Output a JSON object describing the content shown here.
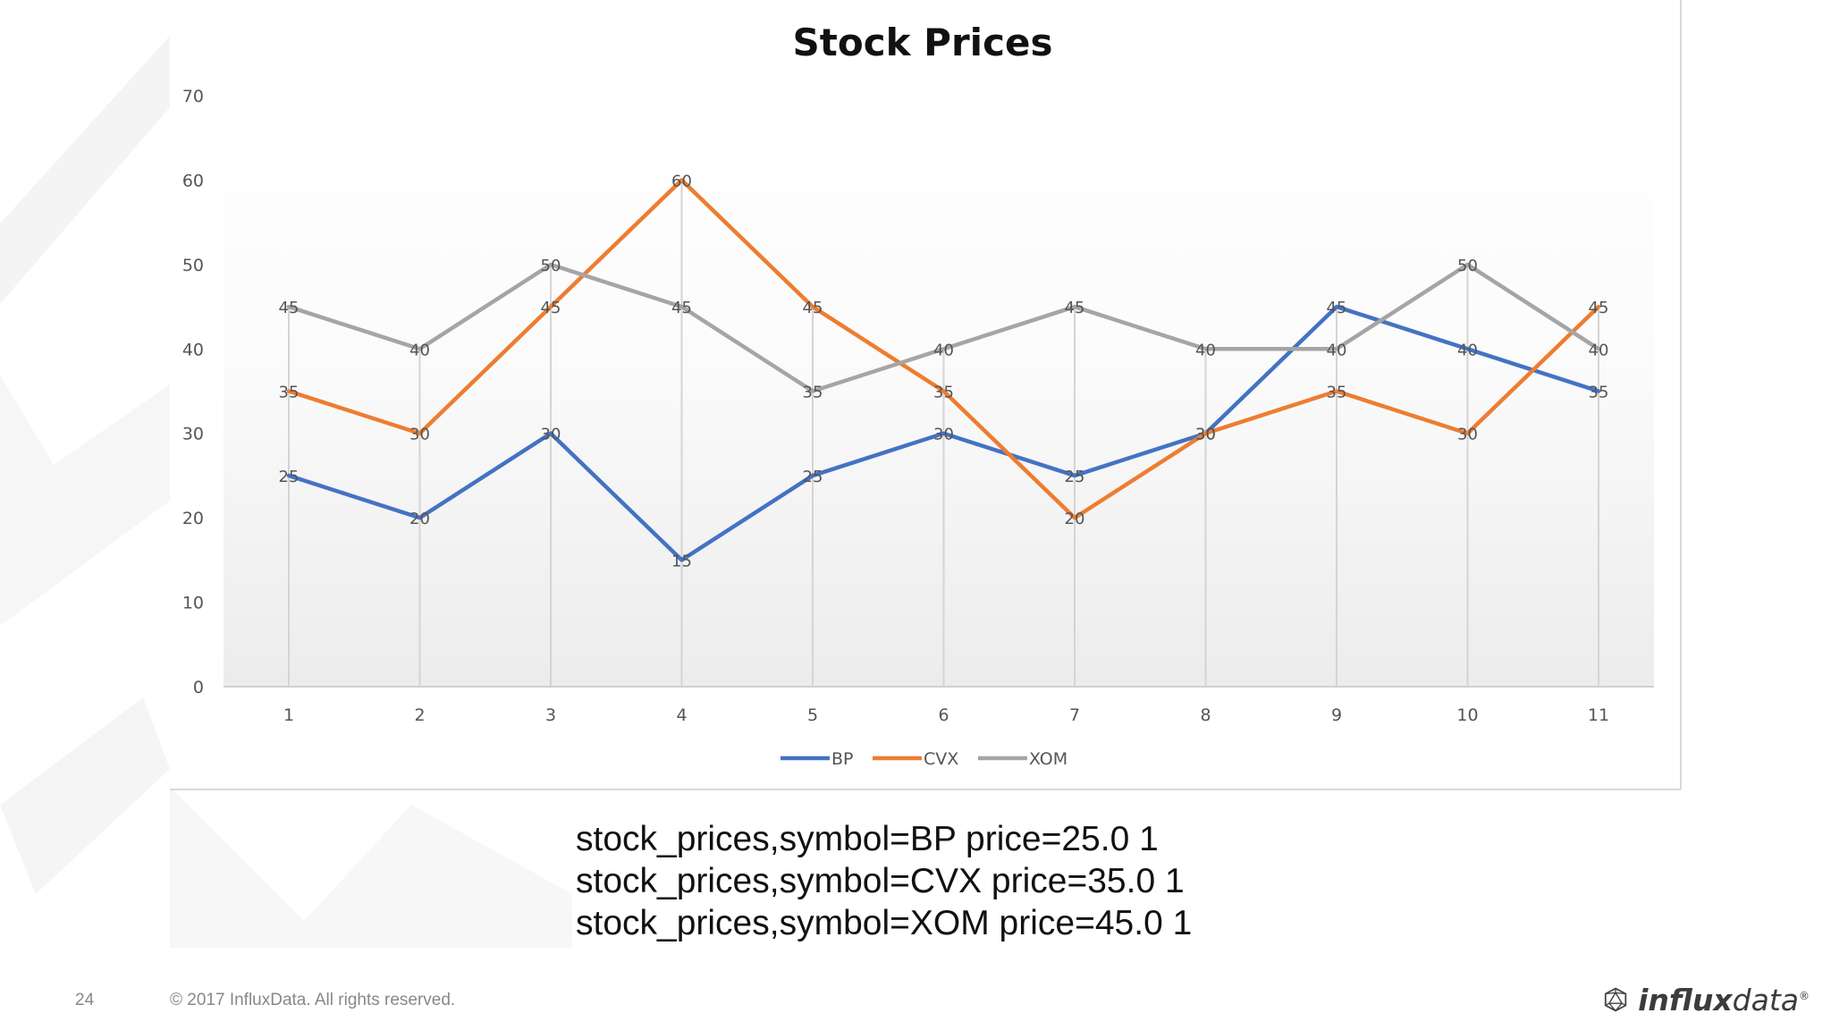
{
  "slide": {
    "page_number": "24",
    "copyright": "© 2017 InfluxData. All rights reserved.",
    "logo_text_bold": "influx",
    "logo_text_rest": "data",
    "logo_mark": "®",
    "logo_icon": "icosahedron-icon"
  },
  "code_lines": [
    "stock_prices,symbol=BP price=25.0 1",
    "stock_prices,symbol=CVX price=35.0 1",
    "stock_prices,symbol=XOM price=45.0 1"
  ],
  "chart_data": {
    "type": "line",
    "title": "Stock Prices",
    "xlabel": "",
    "ylabel": "",
    "x": [
      1,
      2,
      3,
      4,
      5,
      6,
      7,
      8,
      9,
      10,
      11
    ],
    "ylim": [
      0,
      70
    ],
    "yticks": [
      0,
      10,
      20,
      30,
      40,
      50,
      60,
      70
    ],
    "grid": "vertical",
    "legend_position": "bottom",
    "data_labels": true,
    "series": [
      {
        "name": "BP",
        "color": "#4472C4",
        "values": [
          25,
          20,
          30,
          15,
          25,
          30,
          25,
          30,
          45,
          40,
          35
        ]
      },
      {
        "name": "CVX",
        "color": "#ED7D31",
        "values": [
          35,
          30,
          45,
          60,
          45,
          35,
          20,
          30,
          35,
          30,
          45
        ]
      },
      {
        "name": "XOM",
        "color": "#A5A5A5",
        "values": [
          45,
          40,
          50,
          45,
          35,
          40,
          45,
          40,
          40,
          50,
          40
        ]
      }
    ]
  }
}
